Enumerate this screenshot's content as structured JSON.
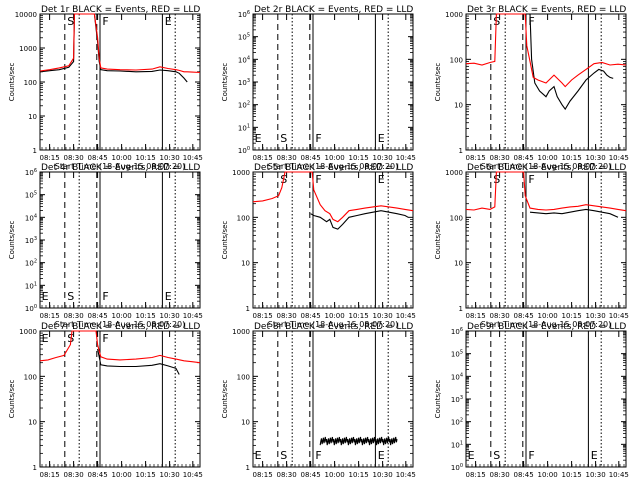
{
  "x_axis": {
    "ticks": [
      "08:15",
      "08:30",
      "08:45",
      "10:00",
      "10:15",
      "10:30",
      "10:45"
    ],
    "label": "Start Time (18-Aug-15 08:07:20)"
  },
  "y_axis": {
    "label": "Counts/sec"
  },
  "chart_data": [
    {
      "type": "line",
      "title": "Det 1r BLACK = Events, RED = LLD",
      "yscale": "log",
      "ylim": [
        1,
        10000
      ],
      "y_ticks": [
        "1",
        "10",
        "100",
        "1000",
        "10000"
      ],
      "markers": [
        "S",
        "F",
        "E"
      ],
      "series": [
        {
          "color": "#000000",
          "x": [
            0,
            0.06,
            0.12,
            0.18,
            0.21,
            0.215,
            0.24,
            0.28,
            0.31,
            0.34,
            0.36,
            0.37,
            0.38,
            0.42,
            0.5,
            0.6,
            0.7,
            0.75,
            0.8,
            0.85,
            0.87,
            0.9,
            0.92
          ],
          "y": [
            200,
            215,
            230,
            270,
            400,
            10000,
            10000,
            10000,
            10000,
            10000,
            1500,
            400,
            230,
            215,
            210,
            200,
            205,
            225,
            215,
            200,
            180,
            130,
            100
          ]
        },
        {
          "color": "#ff0000",
          "x": [
            0,
            0.06,
            0.12,
            0.18,
            0.21,
            0.215,
            0.24,
            0.28,
            0.31,
            0.34,
            0.36,
            0.37,
            0.38,
            0.42,
            0.5,
            0.6,
            0.7,
            0.75,
            0.8,
            0.85,
            0.87,
            0.9,
            0.92,
            0.95,
            1.0
          ],
          "y": [
            210,
            230,
            260,
            300,
            500,
            10000,
            10000,
            10000,
            10000,
            10000,
            2000,
            500,
            260,
            240,
            230,
            225,
            240,
            280,
            250,
            230,
            220,
            200,
            200,
            195,
            190
          ]
        }
      ]
    },
    {
      "type": "line",
      "title": "Det 2r BLACK = Events, RED = LLD",
      "yscale": "log",
      "ylim": [
        1,
        1000000
      ],
      "y_ticks": [
        "10^0",
        "10^1",
        "10^2",
        "10^3",
        "10^4",
        "10^5",
        "10^6"
      ],
      "markers": [
        "E",
        "S",
        "F",
        "E"
      ],
      "series": []
    },
    {
      "type": "line",
      "title": "Det 3r BLACK = Events, RED = LLD",
      "yscale": "log",
      "ylim": [
        1,
        1000
      ],
      "y_ticks": [
        "1",
        "10",
        "100",
        "1000"
      ],
      "markers": [
        "S",
        "F"
      ],
      "series": [
        {
          "color": "#000000",
          "x": [
            0.4,
            0.41,
            0.43,
            0.46,
            0.5,
            0.52,
            0.55,
            0.57,
            0.6,
            0.62,
            0.65,
            0.7,
            0.75,
            0.8,
            0.83,
            0.86,
            0.88,
            0.9,
            0.92
          ],
          "y": [
            1000,
            100,
            30,
            20,
            15,
            20,
            25,
            15,
            10,
            8,
            12,
            20,
            35,
            50,
            60,
            55,
            45,
            40,
            38
          ]
        },
        {
          "color": "#ff0000",
          "x": [
            0,
            0.05,
            0.1,
            0.15,
            0.18,
            0.19,
            0.22,
            0.26,
            0.3,
            0.33,
            0.37,
            0.38,
            0.4,
            0.42,
            0.45,
            0.5,
            0.55,
            0.6,
            0.62,
            0.66,
            0.7,
            0.75,
            0.8,
            0.85,
            0.9,
            0.95,
            1.0
          ],
          "y": [
            80,
            82,
            75,
            85,
            90,
            1000,
            1000,
            1000,
            1000,
            1000,
            1000,
            200,
            90,
            40,
            35,
            30,
            45,
            30,
            25,
            35,
            45,
            60,
            80,
            85,
            75,
            78,
            75
          ]
        }
      ]
    },
    {
      "type": "line",
      "title": "Det 4r BLACK = Events, RED = LLD",
      "yscale": "log",
      "ylim": [
        1,
        1000000
      ],
      "y_ticks": [
        "10^0",
        "10^1",
        "10^2",
        "10^3",
        "10^4",
        "10^5",
        "10^6"
      ],
      "markers": [
        "E",
        "S",
        "F",
        "E"
      ],
      "series": []
    },
    {
      "type": "line",
      "title": "Det 5r BLACK = Events, RED = LLD",
      "yscale": "log",
      "ylim": [
        1,
        1000
      ],
      "y_ticks": [
        "1",
        "10",
        "100",
        "1000"
      ],
      "markers": [
        "S",
        "F",
        "E"
      ],
      "series": [
        {
          "color": "#000000",
          "x": [
            0.36,
            0.38,
            0.42,
            0.46,
            0.48,
            0.5,
            0.53,
            0.56,
            0.6,
            0.65,
            0.7,
            0.75,
            0.8,
            0.85,
            0.9,
            0.95,
            0.97
          ],
          "y": [
            120,
            110,
            100,
            80,
            90,
            60,
            55,
            70,
            100,
            110,
            120,
            130,
            140,
            130,
            120,
            110,
            100
          ]
        },
        {
          "color": "#ff0000",
          "x": [
            0,
            0.06,
            0.12,
            0.16,
            0.18,
            0.2,
            0.24,
            0.28,
            0.32,
            0.35,
            0.37,
            0.38,
            0.42,
            0.45,
            0.48,
            0.5,
            0.53,
            0.56,
            0.6,
            0.65,
            0.7,
            0.75,
            0.8,
            0.85,
            0.9,
            0.95,
            1.0
          ],
          "y": [
            220,
            230,
            260,
            300,
            450,
            1000,
            1000,
            1000,
            1000,
            1000,
            1000,
            400,
            190,
            140,
            120,
            90,
            80,
            100,
            140,
            150,
            160,
            170,
            180,
            170,
            160,
            150,
            140
          ]
        }
      ]
    },
    {
      "type": "line",
      "title": "Det 6r BLACK = Events, RED = LLD",
      "yscale": "log",
      "ylim": [
        1,
        1000
      ],
      "y_ticks": [
        "1",
        "10",
        "100",
        "1000"
      ],
      "markers": [
        "S",
        "F"
      ],
      "series": [
        {
          "color": "#000000",
          "x": [
            0.4,
            0.45,
            0.5,
            0.55,
            0.6,
            0.65,
            0.7,
            0.75,
            0.8,
            0.85,
            0.9,
            0.95
          ],
          "y": [
            130,
            125,
            120,
            125,
            120,
            130,
            140,
            150,
            140,
            130,
            120,
            100
          ]
        },
        {
          "color": "#ff0000",
          "x": [
            0,
            0.05,
            0.1,
            0.15,
            0.18,
            0.19,
            0.22,
            0.26,
            0.3,
            0.33,
            0.36,
            0.37,
            0.4,
            0.45,
            0.5,
            0.55,
            0.6,
            0.65,
            0.7,
            0.75,
            0.8,
            0.85,
            0.9,
            0.95,
            1.0
          ],
          "y": [
            150,
            145,
            160,
            150,
            170,
            1000,
            1000,
            1000,
            1000,
            1000,
            1000,
            300,
            160,
            150,
            145,
            150,
            160,
            170,
            175,
            190,
            180,
            170,
            160,
            150,
            140
          ]
        }
      ]
    },
    {
      "type": "line",
      "title": "Det 7r BLACK = Events, RED = LLD",
      "yscale": "log",
      "ylim": [
        1,
        1000
      ],
      "y_ticks": [
        "1",
        "10",
        "100",
        "1000"
      ],
      "markers": [
        "E",
        "S",
        "F"
      ],
      "series": [
        {
          "color": "#000000",
          "x": [
            0.36,
            0.38,
            0.42,
            0.5,
            0.6,
            0.7,
            0.75,
            0.8,
            0.85,
            0.87
          ],
          "y": [
            400,
            180,
            170,
            165,
            165,
            175,
            190,
            170,
            150,
            110
          ]
        },
        {
          "color": "#ff0000",
          "x": [
            0,
            0.05,
            0.1,
            0.15,
            0.19,
            0.2,
            0.24,
            0.28,
            0.32,
            0.35,
            0.36,
            0.38,
            0.42,
            0.5,
            0.6,
            0.7,
            0.75,
            0.8,
            0.85,
            0.9,
            0.95,
            1.0
          ],
          "y": [
            220,
            230,
            260,
            290,
            500,
            1000,
            1000,
            1000,
            1000,
            1000,
            500,
            270,
            240,
            230,
            240,
            260,
            290,
            260,
            240,
            220,
            210,
            200
          ]
        }
      ]
    },
    {
      "type": "line",
      "title": "Det 8r BLACK = Events, RED = LLD",
      "yscale": "log",
      "ylim": [
        1,
        1000
      ],
      "y_ticks": [
        "1",
        "10",
        "100",
        "1000"
      ],
      "markers": [
        "E",
        "S",
        "F",
        "E"
      ],
      "series": [
        {
          "color": "#000000",
          "noise": true,
          "x": [
            0.42,
            0.9
          ],
          "y": [
            3.8,
            3.8
          ]
        }
      ]
    },
    {
      "type": "line",
      "title": "Det 9r BLACK = Events, RED = LLD",
      "yscale": "log",
      "ylim": [
        1,
        1000000
      ],
      "y_ticks": [
        "10^0",
        "10^1",
        "10^2",
        "10^3",
        "10^4",
        "10^5",
        "10^6"
      ],
      "markers": [
        "E",
        "S",
        "F",
        "E"
      ],
      "series": []
    }
  ]
}
